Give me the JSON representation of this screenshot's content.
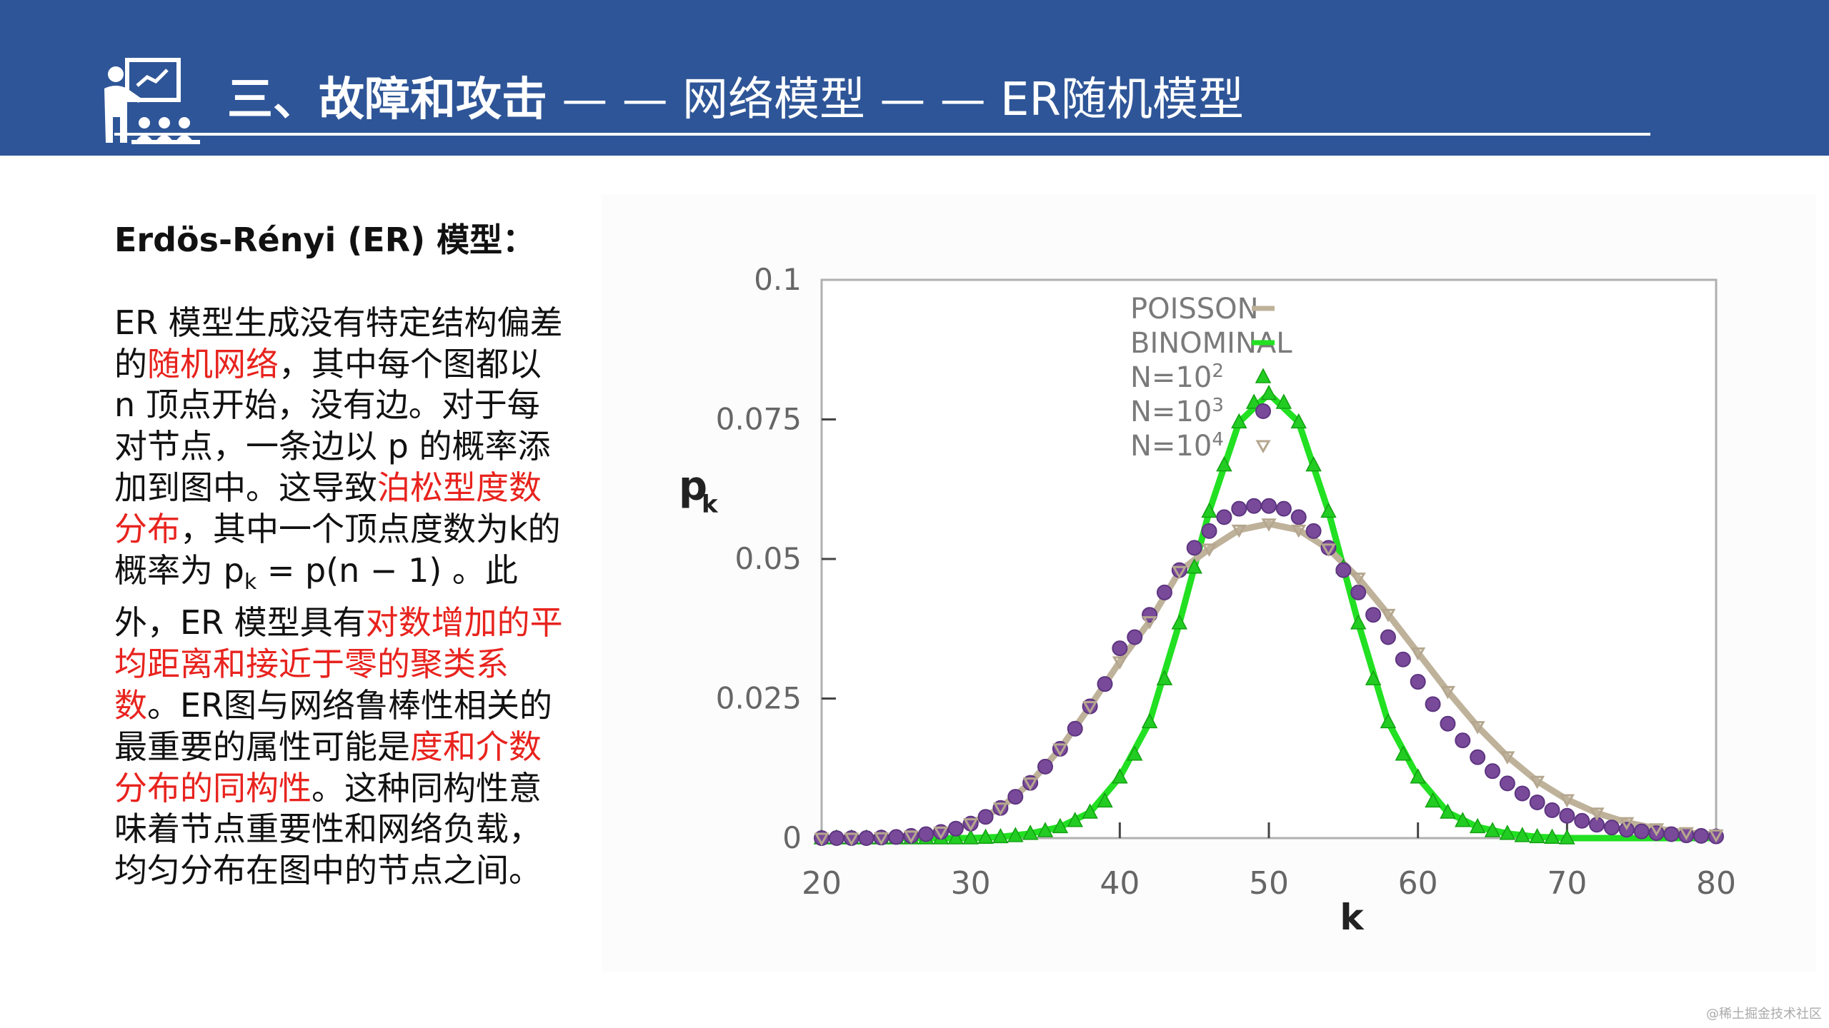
{
  "header": {
    "title_strong": "三、故障和攻击",
    "title_light": " — — 网络模型 — — ER随机模型"
  },
  "text": {
    "heading": "Erdös-Rényi (ER) 模型：",
    "p1": "ER 模型生成没有特定结构偏差的",
    "r1": "随机网络",
    "p2": "，其中每个图都以 n 顶点开始，没有边。对于每对节点，一条边以 p 的概率添加到图中。这导致",
    "r2": "泊松型度数分布",
    "p3": "，其中一个顶点度数为k的概率为 p",
    "p3_sub": "k",
    "p4": " = p(n − 1) 。此外，ER 模型具有",
    "r3": "对数增加的平均距离和接近于零的聚类系数",
    "p5": "。ER图与网络鲁棒性相关的最重要的属性可能是",
    "r4": "度和介数分布的同构性",
    "p6": "。这种同构性意味着节点重要性和网络负载，均匀分布在图中的节点之间。"
  },
  "watermark": "@稀土掘金技术社区",
  "colors": {
    "header_bg": "#2e5597",
    "highlight": "#e8231e",
    "poisson": "#bfb29a",
    "binominal": "#22e022",
    "n100": "#22cc22",
    "n1000": "#7a4a9a",
    "n10000": "#b5a78f"
  },
  "chart_data": {
    "type": "line",
    "xlabel": "k",
    "ylabel": "p",
    "ylabel_sub": "k",
    "xlim": [
      20,
      80
    ],
    "ylim": [
      0,
      0.1
    ],
    "x_ticks": [
      20,
      30,
      40,
      50,
      60,
      70,
      80
    ],
    "y_ticks": [
      0,
      0.025,
      0.05,
      0.075,
      0.1
    ],
    "y_tick_labels": [
      "0",
      "0.025",
      "0.05",
      "0.075",
      "0.1"
    ],
    "legend_position": "top-right",
    "series": [
      {
        "name": "POISSON",
        "style": "line",
        "color": "#bfb29a",
        "x": [
          20,
          22,
          24,
          26,
          28,
          30,
          32,
          34,
          36,
          38,
          40,
          42,
          44,
          46,
          48,
          50,
          52,
          54,
          56,
          58,
          60,
          62,
          64,
          66,
          68,
          70,
          72,
          74,
          76,
          78,
          80
        ],
        "values": [
          0.0,
          0.0,
          0.0001,
          0.0004,
          0.0011,
          0.0026,
          0.0054,
          0.0099,
          0.016,
          0.0236,
          0.0316,
          0.0388,
          0.0478,
          0.0518,
          0.0552,
          0.0563,
          0.0552,
          0.0518,
          0.0466,
          0.0401,
          0.0332,
          0.0263,
          0.02,
          0.0146,
          0.0102,
          0.0069,
          0.0045,
          0.0028,
          0.0017,
          0.001,
          0.0006
        ]
      },
      {
        "name": "BINOMINAL",
        "style": "line",
        "color": "#22e022",
        "x": [
          20,
          22,
          24,
          26,
          28,
          30,
          32,
          34,
          36,
          38,
          40,
          42,
          44,
          46,
          48,
          50,
          52,
          54,
          56,
          58,
          60,
          62,
          64,
          66,
          68,
          70,
          72,
          74,
          76,
          78,
          80
        ],
        "values": [
          0.0,
          0.0,
          0.0,
          0.0,
          0.0,
          0.0,
          0.0002,
          0.0008,
          0.002,
          0.0046,
          0.0109,
          0.0208,
          0.0385,
          0.0585,
          0.0745,
          0.0796,
          0.0745,
          0.0585,
          0.0385,
          0.0208,
          0.0109,
          0.0046,
          0.002,
          0.0008,
          0.0002,
          0.0,
          0.0,
          0.0,
          0.0,
          0.0,
          0.0
        ]
      },
      {
        "name": "N=10",
        "sup": "2",
        "style": "marker-triangle-up",
        "color": "#22cc22",
        "x": [
          20,
          21,
          22,
          23,
          24,
          25,
          26,
          27,
          28,
          29,
          30,
          31,
          32,
          33,
          34,
          35,
          36,
          37,
          38,
          39,
          40,
          41,
          42,
          43,
          44,
          45,
          46,
          47,
          48,
          49,
          50,
          51,
          52,
          53,
          54,
          55,
          56,
          57,
          58,
          59,
          60,
          61,
          62,
          63,
          64,
          65,
          66,
          67,
          68,
          69,
          70
        ],
        "values": [
          0.0,
          0.0,
          0.0,
          0.0,
          0.0,
          0.0,
          0.0,
          0.0,
          0.0,
          0.0,
          0.0,
          0.0001,
          0.0002,
          0.0004,
          0.0008,
          0.0013,
          0.002,
          0.0031,
          0.0046,
          0.0066,
          0.0109,
          0.015,
          0.0208,
          0.0285,
          0.0385,
          0.0485,
          0.0585,
          0.0668,
          0.0745,
          0.078,
          0.0796,
          0.078,
          0.0745,
          0.0668,
          0.0585,
          0.0485,
          0.0385,
          0.0285,
          0.0208,
          0.015,
          0.0109,
          0.0066,
          0.0046,
          0.0031,
          0.002,
          0.0013,
          0.0008,
          0.0004,
          0.0002,
          0.0001,
          0.0
        ]
      },
      {
        "name": "N=10",
        "sup": "3",
        "style": "marker-circle",
        "color": "#7a4a9a",
        "x": [
          20,
          21,
          22,
          23,
          24,
          25,
          26,
          27,
          28,
          29,
          30,
          31,
          32,
          33,
          34,
          35,
          36,
          37,
          38,
          39,
          40,
          41,
          42,
          43,
          44,
          45,
          46,
          47,
          48,
          49,
          50,
          51,
          52,
          53,
          54,
          55,
          56,
          57,
          58,
          59,
          60,
          61,
          62,
          63,
          64,
          65,
          66,
          67,
          68,
          69,
          70,
          71,
          72,
          73,
          74,
          75,
          76,
          77,
          78,
          79,
          80
        ],
        "values": [
          0.0,
          0.0,
          0.0,
          0.0,
          0.0001,
          0.0002,
          0.0004,
          0.0007,
          0.0011,
          0.0017,
          0.0026,
          0.0038,
          0.0054,
          0.0074,
          0.0099,
          0.0128,
          0.016,
          0.0196,
          0.0236,
          0.0276,
          0.034,
          0.036,
          0.04,
          0.044,
          0.048,
          0.052,
          0.055,
          0.0575,
          0.059,
          0.0595,
          0.0595,
          0.059,
          0.0575,
          0.055,
          0.052,
          0.048,
          0.044,
          0.04,
          0.036,
          0.032,
          0.028,
          0.024,
          0.0205,
          0.0175,
          0.0145,
          0.012,
          0.0098,
          0.008,
          0.0064,
          0.005,
          0.004,
          0.0031,
          0.0024,
          0.0019,
          0.0015,
          0.0012,
          0.0009,
          0.0007,
          0.0005,
          0.0004,
          0.0003
        ]
      },
      {
        "name": "N=10",
        "sup": "4",
        "style": "marker-triangle-down",
        "color": "#b5a78f",
        "x": [
          20,
          22,
          24,
          26,
          28,
          30,
          32,
          34,
          36,
          38,
          40,
          42,
          44,
          46,
          48,
          50,
          52,
          54,
          56,
          58,
          60,
          62,
          64,
          66,
          68,
          70,
          72,
          74,
          76,
          78,
          80
        ],
        "values": [
          0.0,
          0.0,
          0.0001,
          0.0004,
          0.0011,
          0.0026,
          0.0054,
          0.0099,
          0.016,
          0.0236,
          0.0316,
          0.0388,
          0.0478,
          0.0518,
          0.0552,
          0.0563,
          0.0552,
          0.0518,
          0.0466,
          0.0401,
          0.0332,
          0.0263,
          0.02,
          0.0146,
          0.0102,
          0.0069,
          0.0045,
          0.0028,
          0.0017,
          0.001,
          0.0006
        ]
      }
    ]
  }
}
